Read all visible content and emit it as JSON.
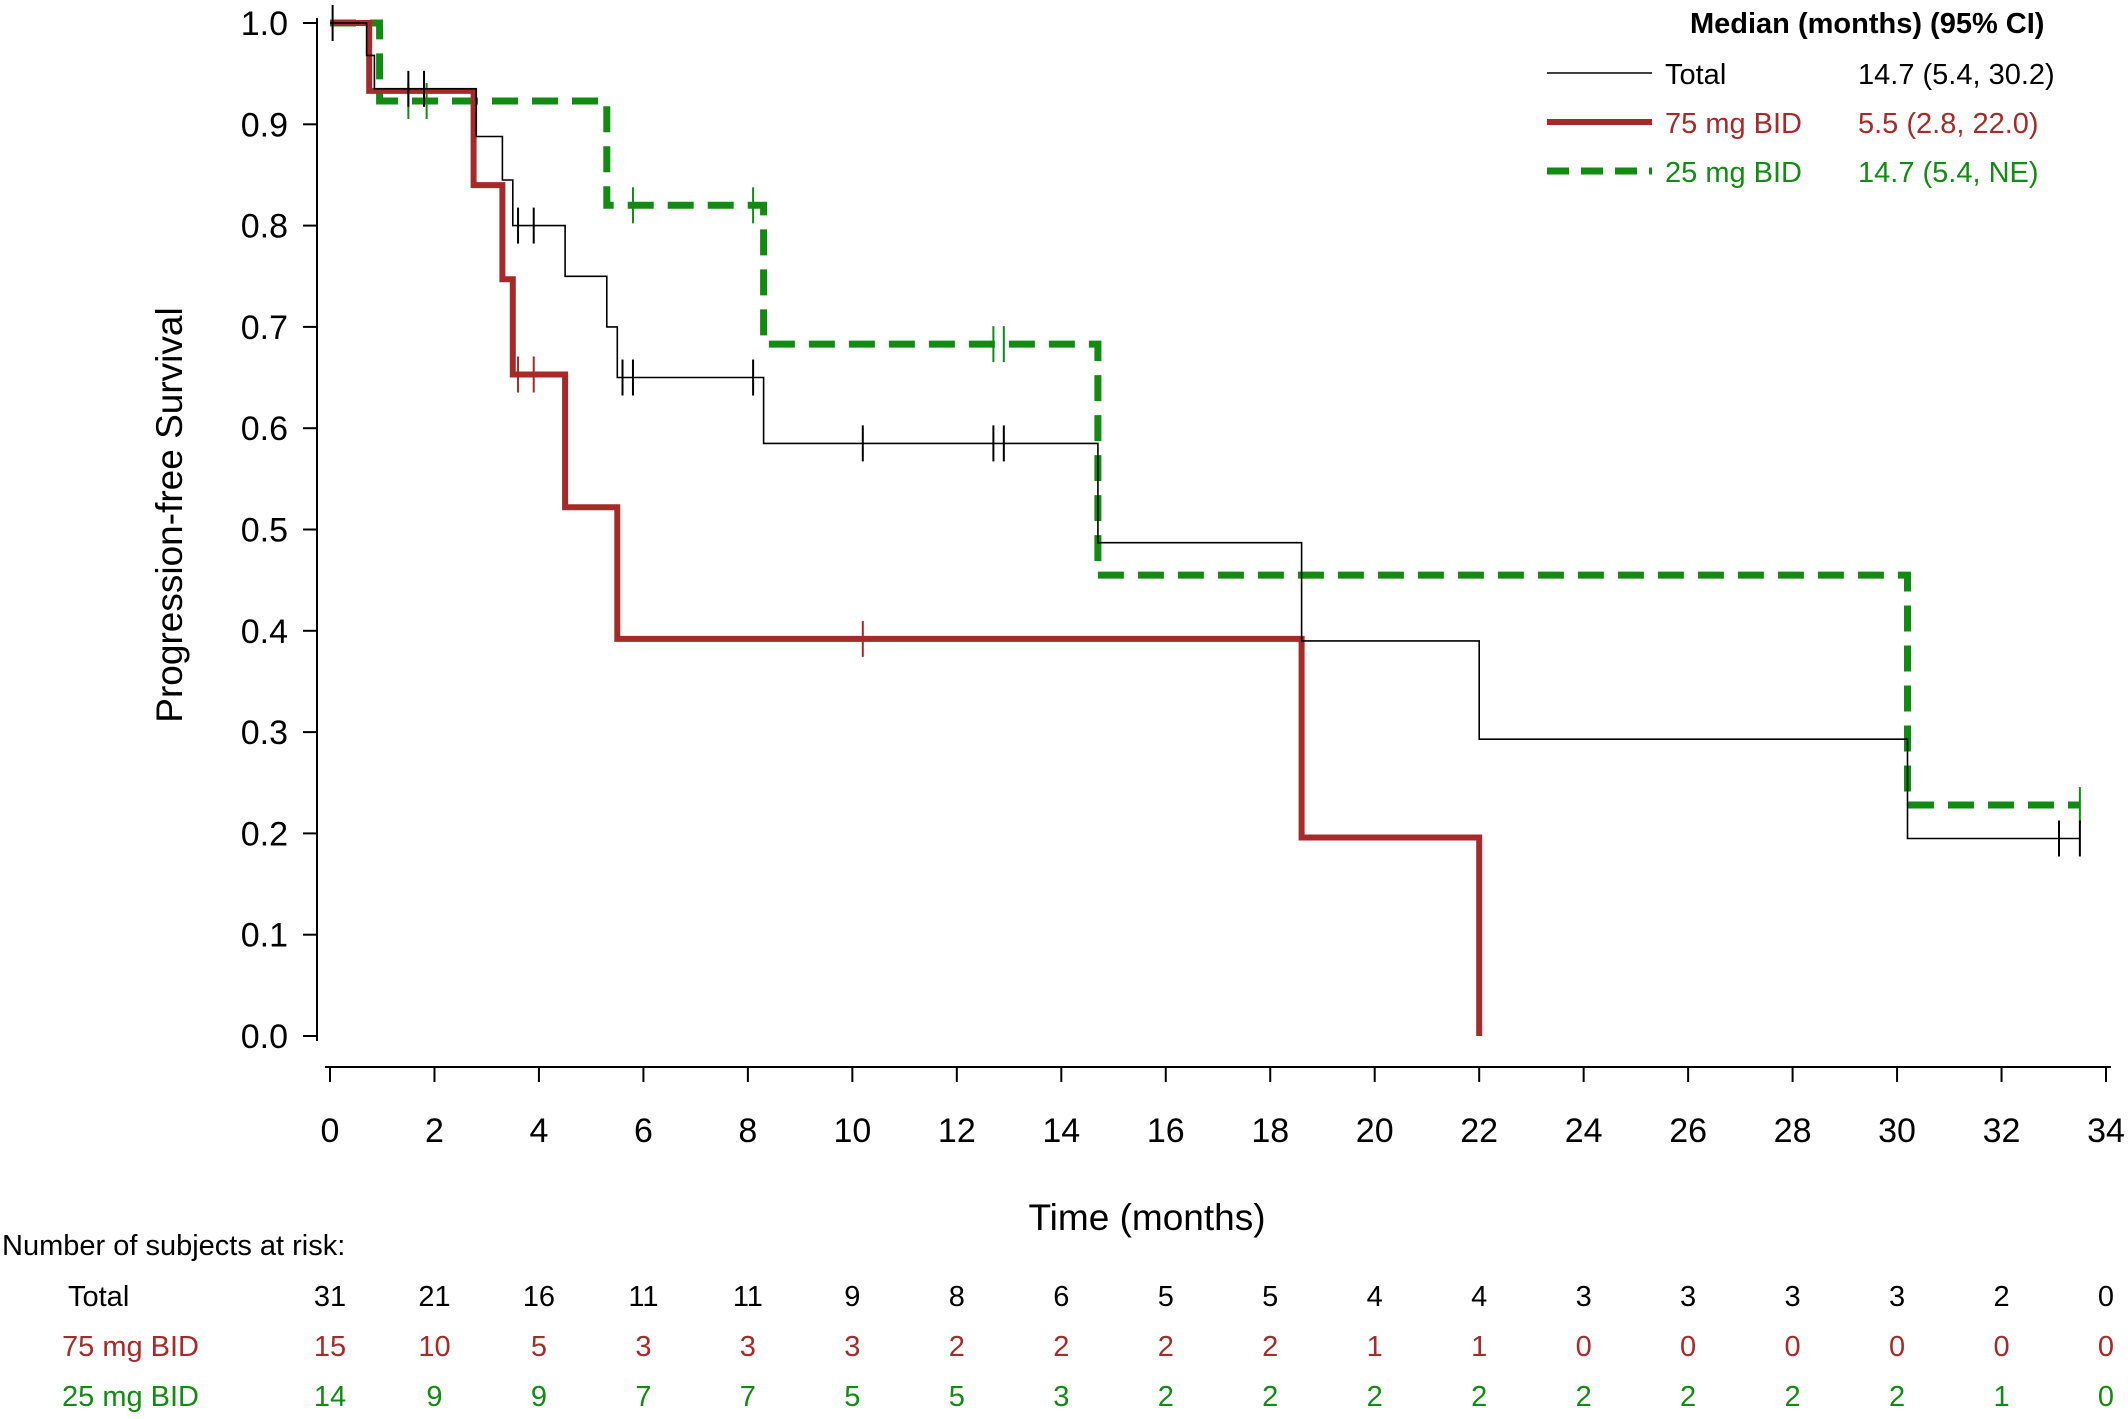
{
  "chart_data": {
    "type": "line",
    "step": true,
    "xlabel": "Time (months)",
    "ylabel": "Progression-free Survival",
    "xlim": [
      0,
      34
    ],
    "ylim": [
      0,
      1.0
    ],
    "x_ticks": [
      0,
      2,
      4,
      6,
      8,
      10,
      12,
      14,
      16,
      18,
      20,
      22,
      24,
      26,
      28,
      30,
      32,
      34
    ],
    "y_ticks": [
      "0.0",
      "0.1",
      "0.2",
      "0.3",
      "0.4",
      "0.5",
      "0.6",
      "0.7",
      "0.8",
      "0.9",
      "1.0"
    ],
    "legend": {
      "placement": "top-right",
      "header": "Median (months) (95% CI)"
    },
    "series": [
      {
        "name": "Total",
        "median": "14.7 (5.4, 30.2)",
        "color": "#000000",
        "style": "solid-thin",
        "steps": [
          [
            0,
            1.0
          ],
          [
            0.7,
            0.968
          ],
          [
            0.85,
            0.935
          ],
          [
            2.8,
            0.888
          ],
          [
            3.3,
            0.845
          ],
          [
            3.5,
            0.8
          ],
          [
            4.5,
            0.75
          ],
          [
            5.3,
            0.7
          ],
          [
            5.5,
            0.65
          ],
          [
            8.3,
            0.585
          ],
          [
            14.7,
            0.487
          ],
          [
            18.6,
            0.39
          ],
          [
            22.0,
            0.293
          ],
          [
            30.2,
            0.195
          ],
          [
            33.5,
            0.195
          ]
        ],
        "censored": [
          [
            0.05,
            1.0
          ],
          [
            1.5,
            0.935
          ],
          [
            1.8,
            0.935
          ],
          [
            3.6,
            0.8
          ],
          [
            3.9,
            0.8
          ],
          [
            5.6,
            0.65
          ],
          [
            5.8,
            0.65
          ],
          [
            8.1,
            0.65
          ],
          [
            10.2,
            0.585
          ],
          [
            12.7,
            0.585
          ],
          [
            12.9,
            0.585
          ],
          [
            33.1,
            0.195
          ],
          [
            33.5,
            0.195
          ]
        ]
      },
      {
        "name": "75 mg BID",
        "median": "5.5 (2.8, 22.0)",
        "color": "#a52a2a",
        "style": "solid-thick",
        "steps": [
          [
            0,
            1.0
          ],
          [
            0.75,
            0.933
          ],
          [
            2.75,
            0.84
          ],
          [
            3.3,
            0.747
          ],
          [
            3.5,
            0.653
          ],
          [
            4.5,
            0.522
          ],
          [
            5.5,
            0.392
          ],
          [
            18.6,
            0.196
          ],
          [
            22.0,
            0.0
          ]
        ],
        "censored": [
          [
            3.6,
            0.653
          ],
          [
            3.9,
            0.653
          ],
          [
            10.2,
            0.392
          ]
        ]
      },
      {
        "name": "25 mg BID",
        "median": "14.7 (5.4, NE)",
        "color": "#138a13",
        "style": "dashed-thick",
        "steps": [
          [
            0,
            1.0
          ],
          [
            0.95,
            0.923
          ],
          [
            5.3,
            0.82
          ],
          [
            8.3,
            0.683
          ],
          [
            14.7,
            0.455
          ],
          [
            30.2,
            0.228
          ],
          [
            33.5,
            0.228
          ]
        ],
        "censored": [
          [
            1.5,
            0.923
          ],
          [
            1.85,
            0.923
          ],
          [
            5.8,
            0.82
          ],
          [
            8.1,
            0.82
          ],
          [
            12.7,
            0.683
          ],
          [
            12.9,
            0.683
          ],
          [
            33.5,
            0.228
          ]
        ]
      }
    ],
    "risk_table": {
      "title": "Number of subjects at risk:",
      "timepoints": [
        0,
        2,
        4,
        6,
        8,
        10,
        12,
        14,
        16,
        18,
        20,
        22,
        24,
        26,
        28,
        30,
        32,
        34
      ],
      "rows": [
        {
          "label": "Total",
          "color": "#000000",
          "values": [
            "31",
            "21",
            "16",
            "11",
            "11",
            "9",
            "8",
            "6",
            "5",
            "5",
            "4",
            "4",
            "3",
            "3",
            "3",
            "3",
            "2",
            "0"
          ]
        },
        {
          "label": "75 mg BID",
          "color": "#a52a2a",
          "values": [
            "15",
            "10",
            "5",
            "3",
            "3",
            "3",
            "2",
            "2",
            "2",
            "2",
            "1",
            "1",
            "0",
            "0",
            "0",
            "0",
            "0",
            "0"
          ]
        },
        {
          "label": "25 mg BID",
          "color": "#138a13",
          "values": [
            "14",
            "9",
            "9",
            "7",
            "7",
            "5",
            "5",
            "3",
            "2",
            "2",
            "2",
            "2",
            "2",
            "2",
            "2",
            "2",
            "1",
            "0"
          ]
        }
      ]
    }
  }
}
